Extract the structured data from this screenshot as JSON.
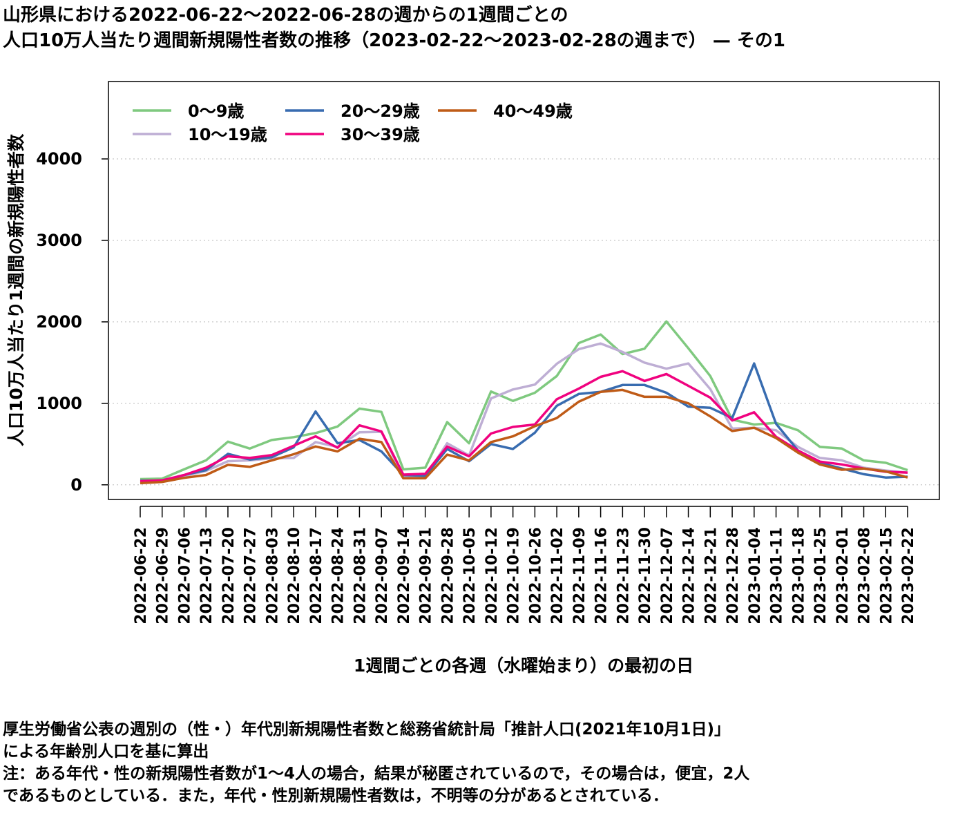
{
  "title": {
    "line1": "山形県における2022-06-22〜2022-06-28の週からの1週間ごとの",
    "line2": "人口10万人当たり週間新規陽性者数の推移（2023-02-22〜2023-02-28の週まで） — その1"
  },
  "footer": {
    "line1": "厚生労働省公表の週別の（性・）年代別新規陽性者数と総務省統計局「推計人口(2021年10月1日)」",
    "line2": "による年齢別人口を基に算出",
    "line3": "注：ある年代・性の新規陽性者数が1〜4人の場合，結果が秘匿されているので，その場合は，便宜，2人",
    "line4": "であるものとしている．また，年代・性別新規陽性者数は，不明等の分があるとされている．"
  },
  "chart_data": {
    "type": "line",
    "xlabel": "1週間ごとの各週（水曜始まり）の最初の日",
    "ylabel": "人口10万人当たり1週間の新規陽性者数",
    "ylim": [
      -180,
      4950
    ],
    "yticks": [
      0,
      1000,
      2000,
      3000,
      4000
    ],
    "grid": "horizontal dotted",
    "legend_position": "top-left",
    "x": [
      "2022-06-22",
      "2022-06-29",
      "2022-07-06",
      "2022-07-13",
      "2022-07-20",
      "2022-07-27",
      "2022-08-03",
      "2022-08-10",
      "2022-08-17",
      "2022-08-24",
      "2022-08-31",
      "2022-09-07",
      "2022-09-14",
      "2022-09-21",
      "2022-09-28",
      "2022-10-05",
      "2022-10-12",
      "2022-10-19",
      "2022-10-26",
      "2022-11-02",
      "2022-11-09",
      "2022-11-16",
      "2022-11-23",
      "2022-11-30",
      "2022-12-07",
      "2022-12-14",
      "2022-12-21",
      "2022-12-28",
      "2023-01-04",
      "2023-01-11",
      "2023-01-18",
      "2023-01-25",
      "2023-02-01",
      "2023-02-08",
      "2023-02-15",
      "2023-02-22"
    ],
    "series": [
      {
        "name": "0〜9歳",
        "color": "#7fc97f",
        "values": [
          70,
          75,
          190,
          300,
          530,
          445,
          550,
          585,
          635,
          715,
          935,
          895,
          190,
          210,
          770,
          510,
          1145,
          1030,
          1130,
          1335,
          1740,
          1845,
          1605,
          1670,
          2005,
          1675,
          1335,
          800,
          740,
          760,
          670,
          465,
          445,
          300,
          270,
          180
        ]
      },
      {
        "name": "10〜19歳",
        "color": "#beaed4",
        "values": [
          40,
          50,
          110,
          170,
          290,
          300,
          325,
          330,
          525,
          465,
          645,
          650,
          100,
          100,
          510,
          360,
          1060,
          1170,
          1230,
          1485,
          1665,
          1735,
          1630,
          1500,
          1425,
          1490,
          1175,
          690,
          700,
          670,
          465,
          330,
          300,
          210,
          175,
          150
        ]
      },
      {
        "name": "20〜29歳",
        "color": "#386cb0",
        "values": [
          50,
          50,
          120,
          180,
          380,
          310,
          340,
          460,
          900,
          510,
          550,
          410,
          120,
          110,
          440,
          290,
          500,
          440,
          640,
          970,
          1115,
          1140,
          1225,
          1225,
          1130,
          960,
          945,
          820,
          1490,
          750,
          420,
          270,
          200,
          130,
          90,
          100
        ]
      },
      {
        "name": "30〜39歳",
        "color": "#f0027f",
        "values": [
          45,
          55,
          120,
          210,
          350,
          330,
          365,
          480,
          595,
          455,
          730,
          655,
          125,
          135,
          470,
          350,
          630,
          710,
          740,
          1050,
          1180,
          1325,
          1395,
          1275,
          1360,
          1215,
          1070,
          790,
          890,
          590,
          420,
          285,
          250,
          200,
          160,
          150
        ]
      },
      {
        "name": "40〜49歳",
        "color": "#bf5b17",
        "values": [
          20,
          35,
          85,
          120,
          245,
          220,
          300,
          375,
          470,
          410,
          565,
          525,
          80,
          80,
          370,
          300,
          525,
          595,
          720,
          820,
          1020,
          1140,
          1165,
          1080,
          1080,
          1000,
          840,
          660,
          700,
          575,
          395,
          250,
          185,
          200,
          165,
          90
        ]
      }
    ]
  }
}
